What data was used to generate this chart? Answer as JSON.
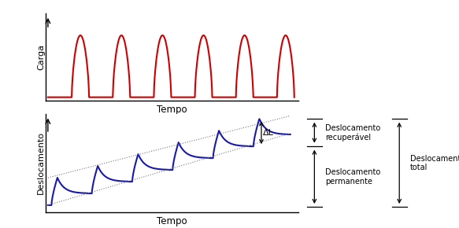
{
  "top_ylabel": "Carga",
  "top_xlabel": "Tempo",
  "bottom_ylabel": "Deslocamento",
  "bottom_xlabel": "Tempo",
  "pulse_color": "#cc0000",
  "disp_color": "#1a1aaa",
  "dotted_color": "#777777",
  "n_pulses": 6,
  "delta_L_label": "ΔL",
  "label_recup": "Deslocamento\nrecuperável",
  "label_perm": "Deslocamento\npermanente",
  "label_total": "Deslocamento\ntotal",
  "bg_color": "#ffffff"
}
